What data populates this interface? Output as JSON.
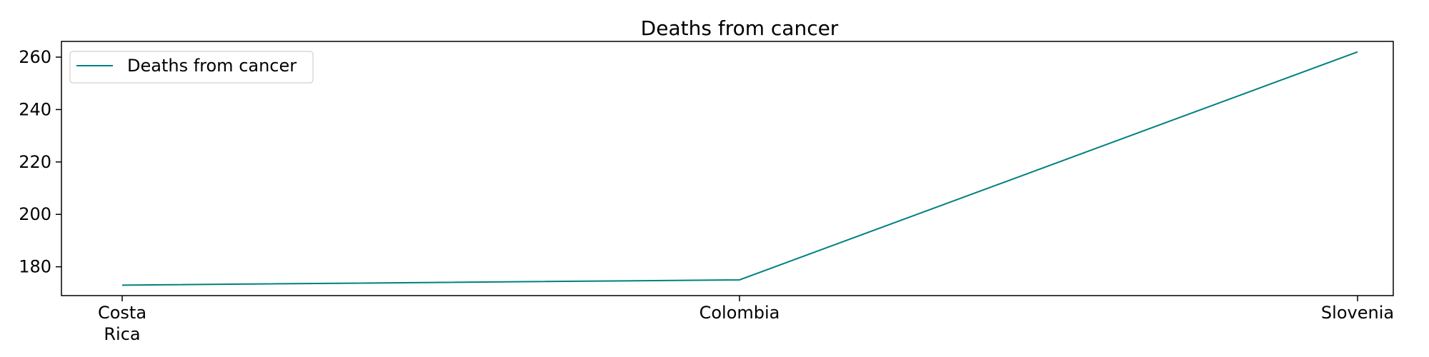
{
  "chart_data": {
    "type": "line",
    "title": "Deaths from cancer",
    "xlabel": "",
    "ylabel": "",
    "categories": [
      "Costa Rica",
      "Colombia",
      "Slovenia"
    ],
    "category_lines": [
      [
        "Costa",
        "Rica"
      ],
      [
        "Colombia"
      ],
      [
        "Slovenia"
      ]
    ],
    "series": [
      {
        "name": "Deaths from cancer",
        "values": [
          173,
          175,
          262
        ],
        "color": "#008080"
      }
    ],
    "ylim": [
      169,
      266
    ],
    "yticks": [
      180,
      200,
      220,
      240,
      260
    ],
    "legend": "top-left",
    "grid": false
  }
}
